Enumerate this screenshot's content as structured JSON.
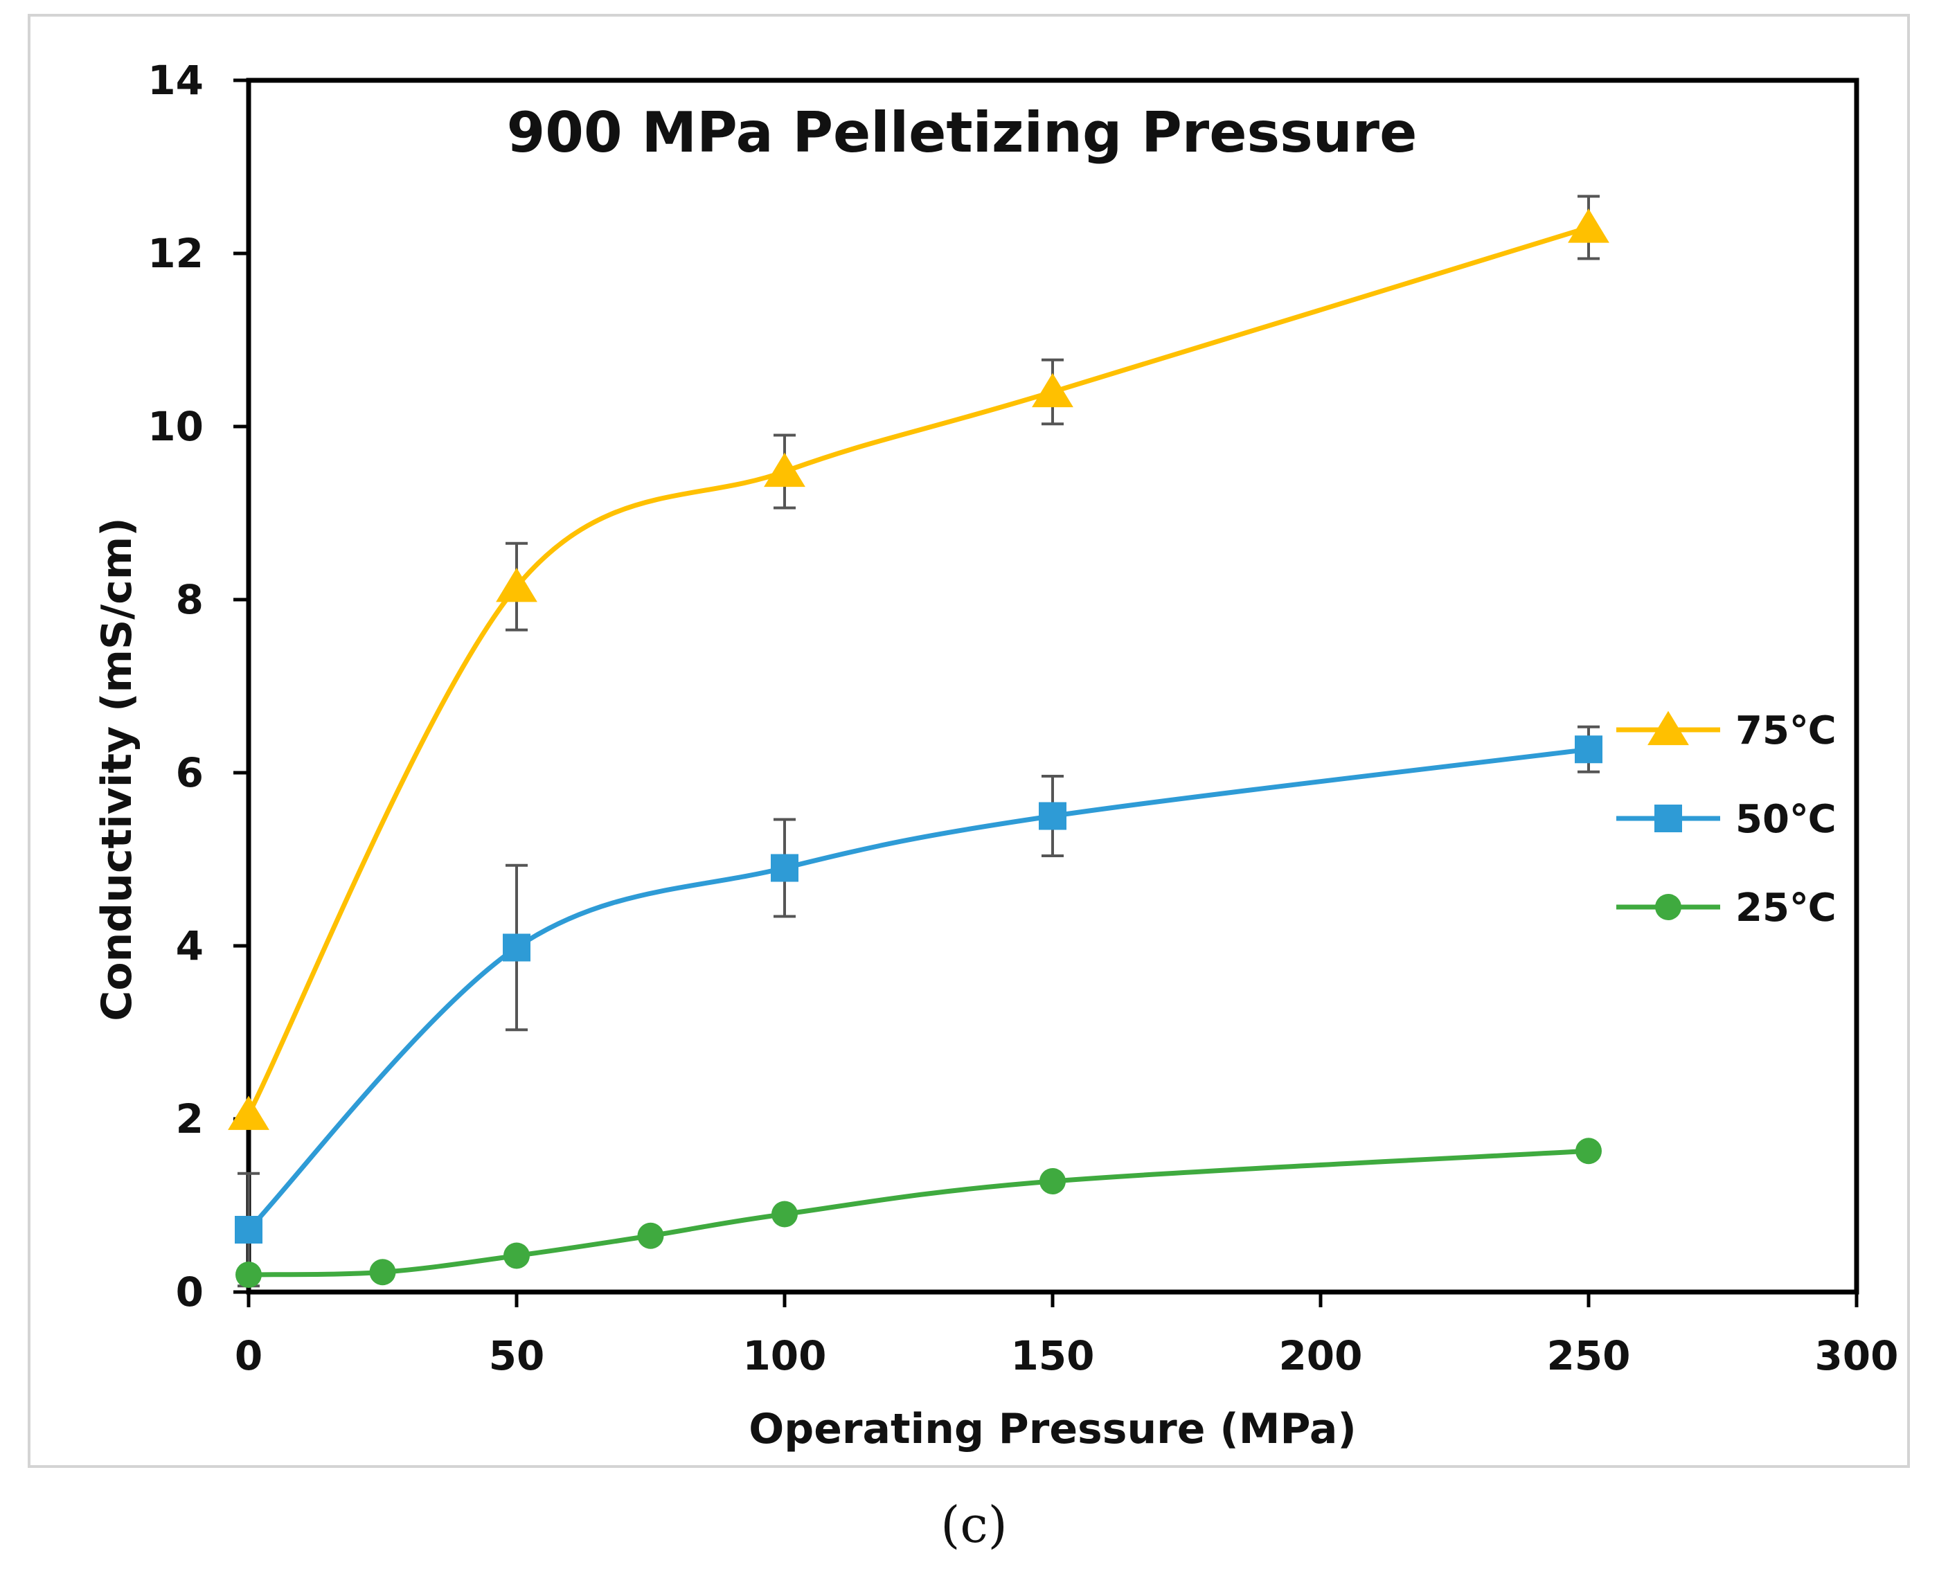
{
  "caption": "(c)",
  "chart_data": {
    "type": "line",
    "title": "900 MPa Pelletizing Pressure",
    "xlabel": "Operating Pressure (MPa)",
    "ylabel": "Conductivity (mS/cm)",
    "xlim": [
      0,
      300
    ],
    "ylim": [
      0,
      14
    ],
    "xticks": [
      0,
      50,
      100,
      150,
      200,
      250,
      300
    ],
    "yticks": [
      0,
      2,
      4,
      6,
      8,
      10,
      12,
      14
    ],
    "grid": false,
    "smooth": true,
    "legend_position": "right",
    "series": [
      {
        "name": "75℃",
        "color": "#FFC000",
        "marker": "triangle",
        "x": [
          0,
          50,
          100,
          150,
          250
        ],
        "y": [
          2.05,
          8.15,
          9.48,
          10.4,
          12.3
        ],
        "err": [
          0,
          0.5,
          0.42,
          0.37,
          0.36
        ]
      },
      {
        "name": "50℃",
        "color": "#2E9BD6",
        "marker": "square",
        "x": [
          0,
          50,
          100,
          150,
          250
        ],
        "y": [
          0.72,
          3.98,
          4.9,
          5.5,
          6.27
        ],
        "err": [
          0.65,
          0.95,
          0.56,
          0.46,
          0.26
        ]
      },
      {
        "name": "25℃",
        "color": "#3FAA3F",
        "marker": "circle",
        "x": [
          0,
          25,
          50,
          75,
          100,
          150,
          250
        ],
        "y": [
          0.2,
          0.23,
          0.42,
          0.65,
          0.9,
          1.28,
          1.63
        ],
        "err": [
          0,
          0,
          0,
          0,
          0,
          0,
          0
        ]
      }
    ]
  }
}
